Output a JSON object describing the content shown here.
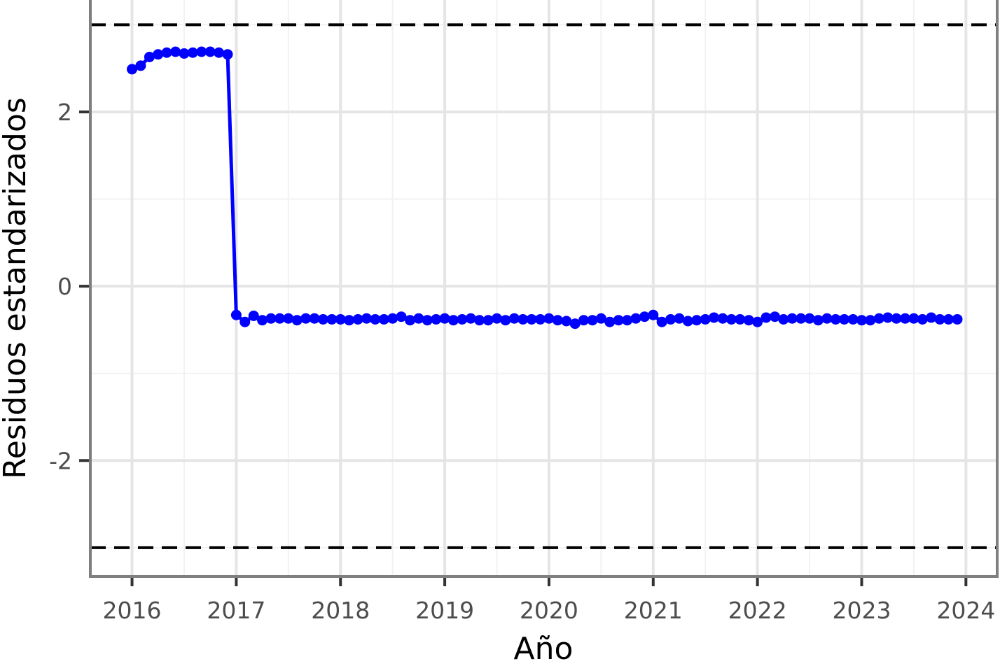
{
  "chart_data": {
    "type": "line",
    "title": "",
    "xlabel": "Año",
    "ylabel": "Residuos estandarizados",
    "xlim": [
      2015.6,
      2024.3
    ],
    "ylim": [
      -3.33,
      3.3
    ],
    "x_ticks": [
      2016,
      2017,
      2018,
      2019,
      2020,
      2021,
      2022,
      2023,
      2024
    ],
    "x_tick_labels": [
      "2016",
      "2017",
      "2018",
      "2019",
      "2020",
      "2021",
      "2022",
      "2023",
      "2024"
    ],
    "y_ticks": [
      -2,
      0,
      2
    ],
    "y_tick_labels": [
      "-2",
      "0",
      "2"
    ],
    "reference_lines": [
      {
        "y": 3,
        "style": "dashed",
        "color": "#000000"
      },
      {
        "y": -3,
        "style": "dashed",
        "color": "#000000"
      }
    ],
    "grid": true,
    "colors": {
      "series": "#0000ff",
      "grid_major": "#e5e5e5",
      "grid_minor": "#f2f2f2",
      "panel_border": "#7f7f7f",
      "tick_text": "#4d4d4d",
      "reference_line": "#000000"
    },
    "series": [
      {
        "x": [
          2016.0,
          2016.083,
          2016.167,
          2016.25,
          2016.333,
          2016.417,
          2016.5,
          2016.583,
          2016.667,
          2016.75,
          2016.833,
          2016.917,
          2017.0,
          2017.083,
          2017.167,
          2017.25,
          2017.333,
          2017.417,
          2017.5,
          2017.583,
          2017.667,
          2017.75,
          2017.833,
          2017.917,
          2018.0,
          2018.083,
          2018.167,
          2018.25,
          2018.333,
          2018.417,
          2018.5,
          2018.583,
          2018.667,
          2018.75,
          2018.833,
          2018.917,
          2019.0,
          2019.083,
          2019.167,
          2019.25,
          2019.333,
          2019.417,
          2019.5,
          2019.583,
          2019.667,
          2019.75,
          2019.833,
          2019.917,
          2020.0,
          2020.083,
          2020.167,
          2020.25,
          2020.333,
          2020.417,
          2020.5,
          2020.583,
          2020.667,
          2020.75,
          2020.833,
          2020.917,
          2021.0,
          2021.083,
          2021.167,
          2021.25,
          2021.333,
          2021.417,
          2021.5,
          2021.583,
          2021.667,
          2021.75,
          2021.833,
          2021.917,
          2022.0,
          2022.083,
          2022.167,
          2022.25,
          2022.333,
          2022.417,
          2022.5,
          2022.583,
          2022.667,
          2022.75,
          2022.833,
          2022.917,
          2023.0,
          2023.083,
          2023.167,
          2023.25,
          2023.333,
          2023.417,
          2023.5,
          2023.583,
          2023.667,
          2023.75,
          2023.833,
          2023.917
        ],
        "values": [
          2.49,
          2.53,
          2.63,
          2.66,
          2.68,
          2.69,
          2.67,
          2.68,
          2.69,
          2.69,
          2.68,
          2.66,
          -0.33,
          -0.41,
          -0.34,
          -0.39,
          -0.37,
          -0.37,
          -0.37,
          -0.39,
          -0.37,
          -0.37,
          -0.38,
          -0.38,
          -0.38,
          -0.39,
          -0.38,
          -0.37,
          -0.38,
          -0.38,
          -0.37,
          -0.35,
          -0.39,
          -0.37,
          -0.39,
          -0.38,
          -0.37,
          -0.39,
          -0.38,
          -0.37,
          -0.39,
          -0.39,
          -0.37,
          -0.39,
          -0.37,
          -0.38,
          -0.38,
          -0.38,
          -0.37,
          -0.39,
          -0.4,
          -0.43,
          -0.39,
          -0.39,
          -0.37,
          -0.41,
          -0.39,
          -0.39,
          -0.37,
          -0.35,
          -0.33,
          -0.41,
          -0.38,
          -0.37,
          -0.4,
          -0.39,
          -0.38,
          -0.36,
          -0.37,
          -0.38,
          -0.38,
          -0.39,
          -0.41,
          -0.36,
          -0.35,
          -0.38,
          -0.37,
          -0.37,
          -0.37,
          -0.39,
          -0.37,
          -0.38,
          -0.38,
          -0.38,
          -0.39,
          -0.39,
          -0.37,
          -0.36,
          -0.37,
          -0.37,
          -0.37,
          -0.38,
          -0.36,
          -0.38,
          -0.38,
          -0.38
        ]
      }
    ]
  }
}
